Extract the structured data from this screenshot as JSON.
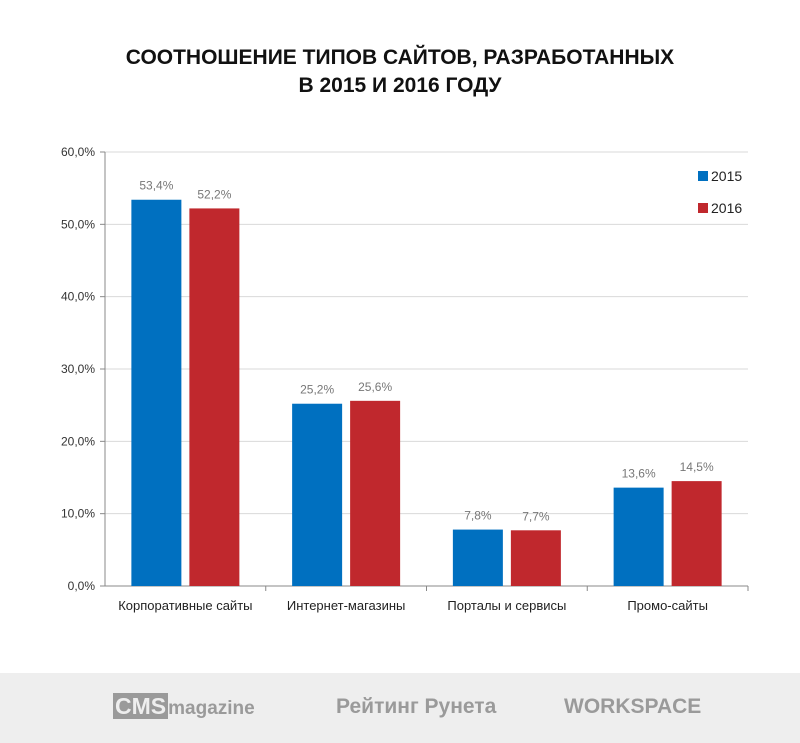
{
  "chart_data": {
    "type": "bar",
    "title": "СООТНОШЕНИЕ ТИПОВ САЙТОВ, РАЗРАБОТАННЫХ",
    "subtitle": "В 2015 И 2016 ГОДУ",
    "categories": [
      "Корпоративные сайты",
      "Интернет-магазины",
      "Порталы и сервисы",
      "Промо-сайты"
    ],
    "series": [
      {
        "name": "2015",
        "color": "#0070c0",
        "values": [
          53.4,
          25.2,
          7.8,
          13.6
        ],
        "labels": [
          "53,4%",
          "25,2%",
          "7,8%",
          "13,6%"
        ]
      },
      {
        "name": "2016",
        "color": "#c0282d",
        "values": [
          52.2,
          25.6,
          7.7,
          14.5
        ],
        "labels": [
          "52,2%",
          "25,6%",
          "7,7%",
          "14,5%"
        ]
      }
    ],
    "yticks": [
      0,
      10,
      20,
      30,
      40,
      50,
      60
    ],
    "ytick_labels": [
      "0,0%",
      "10,0%",
      "20,0%",
      "30,0%",
      "40,0%",
      "50,0%",
      "60,0%"
    ],
    "ylim": [
      0,
      60
    ],
    "grid": true,
    "legend": "top-right"
  },
  "footer": {
    "logos": [
      "CMS magazine",
      "Рейтинг Рунета",
      "WORKSPACE"
    ],
    "cms_part1": "CMS",
    "cms_part2": "magazine",
    "rating": "Рейтинг Рунета",
    "workspace": "WORKSPACE"
  }
}
